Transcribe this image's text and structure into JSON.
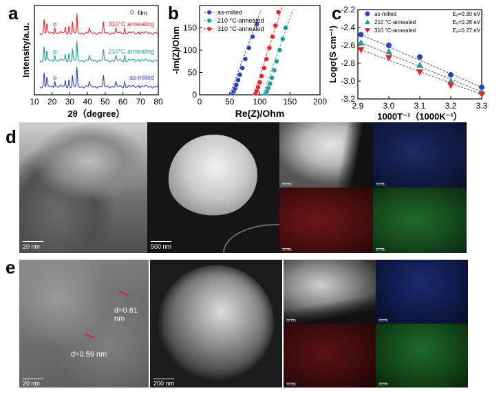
{
  "panel_labels": {
    "a": "a",
    "b": "b",
    "c": "c",
    "d": "d",
    "e": "e"
  },
  "chart_data": [
    {
      "type": "line",
      "panel": "a",
      "xlabel": "2θ（degree）",
      "ylabel": "Intensity/a.u.",
      "xlim": [
        10,
        80
      ],
      "xticks": [
        10,
        20,
        30,
        40,
        50,
        60,
        70,
        80
      ],
      "legend": {
        "label": "film",
        "placement": "top-right"
      },
      "series": [
        {
          "name": "310°C annealing",
          "color": "#e8262a",
          "offset": 2,
          "marker_x": [
            21.5
          ]
        },
        {
          "name": "210°C annealing",
          "color": "#239d93",
          "offset": 1,
          "marker_x": [
            21.5
          ]
        },
        {
          "name": "as-milled",
          "color": "#2e45b8",
          "offset": 0,
          "marker_x": [
            21.5
          ]
        }
      ],
      "peaks": [
        {
          "x": 15.5,
          "h": 0.55
        },
        {
          "x": 17,
          "h": 0.35
        },
        {
          "x": 21.5,
          "h": 0.25
        },
        {
          "x": 27.5,
          "h": 0.22
        },
        {
          "x": 29.5,
          "h": 0.28
        },
        {
          "x": 31.5,
          "h": 0.45
        },
        {
          "x": 34,
          "h": 0.75
        },
        {
          "x": 41,
          "h": 0.18
        },
        {
          "x": 49,
          "h": 0.4
        },
        {
          "x": 56,
          "h": 0.15
        },
        {
          "x": 61,
          "h": 0.2
        },
        {
          "x": 69,
          "h": 0.08
        }
      ]
    },
    {
      "type": "scatter",
      "panel": "b",
      "xlabel": "Re(Z)/Ohm",
      "ylabel": "-Im(Z)/Ohm",
      "xlim": [
        0,
        200
      ],
      "ylim": [
        0,
        200
      ],
      "xticks": [
        0,
        50,
        100,
        150,
        200
      ],
      "yticks": [
        0,
        50,
        100,
        150
      ],
      "legend_placement": "top-left",
      "series": [
        {
          "name": "as-milled",
          "color": "#2e45b8",
          "points": [
            [
              55,
              3
            ],
            [
              57,
              8
            ],
            [
              59,
              14
            ],
            [
              61,
              22
            ],
            [
              64,
              33
            ],
            [
              67,
              45
            ],
            [
              71,
              60
            ],
            [
              76,
              80
            ],
            [
              82,
              105
            ],
            [
              88,
              130
            ],
            [
              95,
              158
            ]
          ],
          "fit": [
            [
              50,
              0
            ],
            [
              102,
              190
            ]
          ]
        },
        {
          "name": "210 °C-annealed",
          "color": "#239d93",
          "points": [
            [
              110,
              3
            ],
            [
              112,
              8
            ],
            [
              114,
              15
            ],
            [
              117,
              25
            ],
            [
              120,
              38
            ],
            [
              124,
              55
            ],
            [
              128,
              75
            ],
            [
              133,
              100
            ],
            [
              138,
              125
            ],
            [
              143,
              150
            ]
          ],
          "fit": [
            [
              105,
              0
            ],
            [
              155,
              190
            ]
          ]
        },
        {
          "name": "310 °C-annealed",
          "color": "#e8262a",
          "points": [
            [
              93,
              3
            ],
            [
              95,
              9
            ],
            [
              97,
              17
            ],
            [
              100,
              28
            ],
            [
              103,
              42
            ],
            [
              107,
              60
            ],
            [
              111,
              80
            ],
            [
              116,
              105
            ],
            [
              121,
              130
            ],
            [
              126,
              155
            ],
            [
              131,
              185
            ]
          ],
          "fit": [
            [
              90,
              0
            ],
            [
              138,
              200
            ]
          ]
        }
      ]
    },
    {
      "type": "scatter",
      "panel": "c",
      "xlabel": "1000T⁻¹（1000K⁻¹）",
      "ylabel": "Logσ(S cm⁻¹)",
      "xlim": [
        2.9,
        3.3
      ],
      "ylim": [
        -3.2,
        -2.2
      ],
      "xticks": [
        2.9,
        3.0,
        3.1,
        3.2,
        3.3
      ],
      "yticks": [
        -2.2,
        -2.4,
        -2.6,
        -2.8,
        -3.0,
        -3.2
      ],
      "legend_placement": "top-right",
      "series": [
        {
          "name": "as-milled",
          "ea": "Eₐ=0.30 eV",
          "color": "#2e45b8",
          "marker": "circle",
          "x": [
            2.91,
            3.0,
            3.1,
            3.2,
            3.3
          ],
          "y": [
            -2.48,
            -2.6,
            -2.73,
            -2.93,
            -3.07
          ]
        },
        {
          "name": "210 °C-annealed",
          "ea": "Eₐ=0.28 eV",
          "color": "#239d93",
          "marker": "triangle-up",
          "x": [
            2.91,
            3.0,
            3.1,
            3.2,
            3.3
          ],
          "y": [
            -2.57,
            -2.67,
            -2.82,
            -3.0,
            -3.12
          ]
        },
        {
          "name": "310 °C-annealed",
          "ea": "Eₐ=0.27 eV",
          "color": "#e8262a",
          "marker": "triangle-down",
          "x": [
            2.91,
            3.0,
            3.1,
            3.2,
            3.3
          ],
          "y": [
            -2.65,
            -2.74,
            -2.9,
            -3.05,
            -3.15
          ]
        }
      ]
    }
  ],
  "images": {
    "d": {
      "tem_scale": "20 nm",
      "haadf_scale": "500 nm",
      "map_scales": [
        "50 nm",
        "10 nm",
        "10 nm",
        "10 nm"
      ]
    },
    "e": {
      "tem_scale": "20 nm",
      "d_spacing_1": "d=0.61 nm",
      "d_spacing_2": "d=0.59 nm",
      "haadf_scale": "200 nm",
      "map_scales": [
        "20 nm",
        "20 nm",
        "20 nm",
        "20 nm"
      ]
    }
  },
  "colors": {
    "blue": "#2e45b8",
    "teal": "#239d93",
    "red": "#e8262a"
  }
}
